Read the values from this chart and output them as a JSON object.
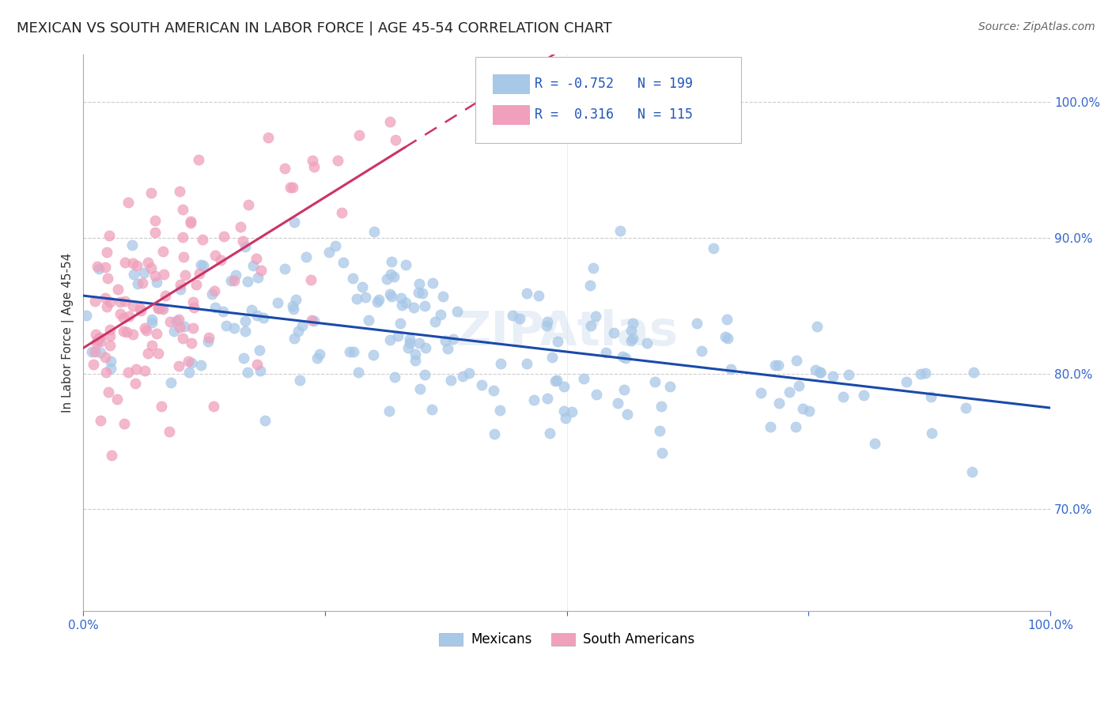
{
  "title": "MEXICAN VS SOUTH AMERICAN IN LABOR FORCE | AGE 45-54 CORRELATION CHART",
  "source": "Source: ZipAtlas.com",
  "ylabel": "In Labor Force | Age 45-54",
  "xlim": [
    0.0,
    1.0
  ],
  "ylim": [
    0.625,
    1.035
  ],
  "yticks": [
    0.7,
    0.8,
    0.9,
    1.0
  ],
  "ytick_labels": [
    "70.0%",
    "80.0%",
    "90.0%",
    "100.0%"
  ],
  "blue_color": "#a8c8e8",
  "pink_color": "#f0a0bc",
  "blue_line_color": "#1a4aaa",
  "pink_line_color": "#cc3366",
  "title_fontsize": 13,
  "axis_label_fontsize": 11,
  "tick_fontsize": 11,
  "source_fontsize": 10,
  "background_color": "#ffffff",
  "watermark_text": "ZIPAtlas",
  "n_mexican": 199,
  "n_south_american": 115,
  "mex_seed": 77,
  "sa_seed": 55
}
